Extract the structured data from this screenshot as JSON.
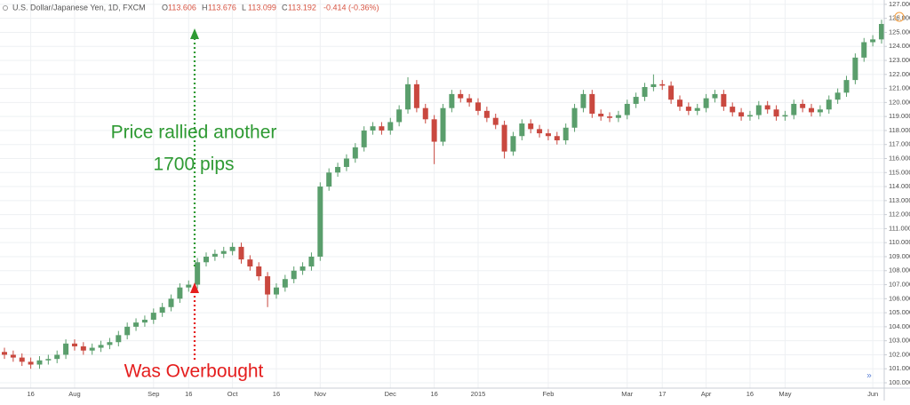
{
  "chart_data": {
    "type": "candlestick",
    "header": {
      "symbol": "U.S. Dollar/Japanese Yen, 1D, FXCM",
      "labels": [
        "O",
        "H",
        "L",
        "C"
      ],
      "open": 113.606,
      "high": 113.676,
      "low": 113.099,
      "close": 113.192,
      "change": "-0.414 (-0.36%)"
    },
    "up_color": "#5a9e6c",
    "down_color": "#c9483f",
    "grid": true,
    "ylim": [
      99.62,
      127.31
    ],
    "yticks": [
      {
        "value": 100,
        "label": "100.000"
      },
      {
        "value": 101,
        "label": "101.000"
      },
      {
        "value": 102,
        "label": "102.000"
      },
      {
        "value": 103,
        "label": "103.000"
      },
      {
        "value": 104,
        "label": "104.000"
      },
      {
        "value": 105,
        "label": "105.000"
      },
      {
        "value": 106,
        "label": "106.000"
      },
      {
        "value": 107,
        "label": "107.000"
      },
      {
        "value": 108,
        "label": "108.000"
      },
      {
        "value": 109,
        "label": "109.000"
      },
      {
        "value": 110,
        "label": "110.000"
      },
      {
        "value": 111,
        "label": "111.000"
      },
      {
        "value": 112,
        "label": "112.000"
      },
      {
        "value": 113,
        "label": "113.000"
      },
      {
        "value": 114,
        "label": "114.000"
      },
      {
        "value": 115,
        "label": "115.000"
      },
      {
        "value": 116,
        "label": "116.000"
      },
      {
        "value": 117,
        "label": "117.000"
      },
      {
        "value": 118,
        "label": "118.000"
      },
      {
        "value": 119,
        "label": "119.000"
      },
      {
        "value": 120,
        "label": "120.000"
      },
      {
        "value": 121,
        "label": "121.000"
      },
      {
        "value": 122,
        "label": "122.000"
      },
      {
        "value": 123,
        "label": "123.000"
      },
      {
        "value": 124,
        "label": "124.000"
      },
      {
        "value": 125,
        "label": "125.000"
      },
      {
        "value": 126,
        "label": "126.000"
      },
      {
        "value": 127,
        "label": "127.000"
      }
    ],
    "categories": [
      null,
      null,
      null,
      "16",
      null,
      null,
      null,
      null,
      "Aug",
      null,
      null,
      null,
      null,
      null,
      null,
      null,
      null,
      "Sep",
      null,
      null,
      null,
      "16",
      null,
      null,
      null,
      null,
      "Oct",
      null,
      null,
      null,
      null,
      "16",
      null,
      null,
      null,
      null,
      "Nov",
      null,
      null,
      null,
      null,
      null,
      null,
      null,
      "Dec",
      null,
      null,
      null,
      null,
      "16",
      null,
      null,
      null,
      null,
      "2015",
      null,
      null,
      null,
      null,
      null,
      null,
      null,
      "Feb",
      null,
      null,
      null,
      null,
      null,
      null,
      null,
      null,
      "Mar",
      null,
      null,
      null,
      "17",
      null,
      null,
      null,
      null,
      "Apr",
      null,
      null,
      null,
      null,
      "16",
      null,
      null,
      null,
      "May",
      null,
      null,
      null,
      null,
      null,
      null,
      null,
      null,
      null,
      "Jun",
      null
    ],
    "open": [
      102.2,
      102.0,
      101.8,
      101.5,
      101.3,
      101.6,
      101.7,
      102.0,
      102.8,
      102.6,
      102.3,
      102.5,
      102.7,
      102.9,
      103.4,
      104.0,
      104.3,
      104.5,
      105.0,
      105.4,
      106.0,
      106.8,
      107.0,
      108.6,
      109.0,
      109.2,
      109.4,
      109.7,
      108.8,
      108.3,
      107.6,
      106.3,
      106.8,
      107.4,
      108.0,
      108.3,
      109.0,
      114.0,
      115.0,
      115.4,
      116.0,
      116.8,
      118.0,
      118.3,
      118.0,
      118.6,
      119.5,
      121.3,
      119.6,
      118.8,
      117.2,
      119.6,
      120.6,
      120.3,
      120.0,
      119.4,
      118.9,
      118.4,
      116.5,
      117.6,
      118.5,
      118.1,
      117.8,
      117.6,
      117.3,
      118.2,
      119.6,
      120.6,
      119.2,
      119.0,
      118.9,
      119.1,
      119.9,
      120.4,
      121.1,
      121.3,
      121.2,
      120.2,
      119.7,
      119.4,
      119.6,
      120.3,
      120.6,
      119.7,
      119.3,
      119.0,
      119.1,
      119.8,
      119.5,
      119.0,
      119.1,
      119.9,
      119.6,
      119.3,
      119.5,
      120.2,
      120.7,
      121.6,
      123.2,
      124.3,
      124.5
    ],
    "high": [
      102.5,
      102.3,
      102.1,
      101.8,
      101.9,
      102.0,
      102.3,
      103.1,
      103.1,
      102.9,
      102.8,
      103.0,
      103.2,
      103.7,
      104.3,
      104.6,
      104.8,
      105.3,
      105.7,
      106.3,
      107.1,
      107.3,
      108.9,
      109.3,
      109.5,
      109.7,
      110.0,
      110.0,
      109.1,
      108.6,
      107.9,
      107.1,
      107.7,
      108.3,
      108.6,
      109.3,
      114.3,
      115.3,
      115.7,
      116.3,
      117.1,
      118.3,
      118.6,
      118.6,
      118.9,
      119.8,
      121.8,
      121.6,
      119.9,
      119.1,
      119.9,
      120.9,
      120.9,
      120.6,
      120.3,
      119.7,
      119.2,
      118.7,
      117.9,
      118.8,
      118.8,
      118.4,
      118.1,
      117.9,
      118.5,
      119.9,
      120.9,
      120.9,
      119.5,
      119.3,
      119.4,
      120.2,
      120.7,
      121.4,
      122.0,
      121.6,
      121.5,
      120.5,
      120.0,
      119.9,
      120.6,
      120.9,
      120.9,
      120.0,
      119.6,
      119.4,
      120.1,
      120.1,
      119.8,
      119.4,
      120.2,
      120.2,
      119.9,
      119.8,
      120.5,
      121.0,
      121.9,
      123.5,
      124.6,
      124.8,
      125.9
    ],
    "low": [
      101.7,
      101.5,
      101.2,
      101.0,
      101.0,
      101.3,
      101.4,
      101.7,
      102.3,
      102.0,
      102.0,
      102.2,
      102.4,
      102.6,
      103.1,
      103.7,
      104.0,
      104.2,
      104.7,
      105.1,
      105.7,
      106.5,
      106.7,
      108.3,
      108.7,
      108.9,
      109.1,
      108.5,
      108.0,
      107.3,
      105.4,
      106.0,
      106.5,
      107.1,
      107.7,
      108.0,
      108.7,
      113.7,
      114.7,
      115.1,
      115.7,
      116.5,
      117.7,
      117.7,
      117.7,
      118.3,
      119.2,
      119.3,
      118.5,
      115.6,
      116.9,
      119.3,
      120.0,
      119.7,
      119.1,
      118.6,
      118.1,
      116.0,
      116.2,
      117.3,
      117.8,
      117.5,
      117.3,
      117.0,
      117.0,
      117.9,
      119.3,
      118.9,
      118.7,
      118.6,
      118.6,
      118.8,
      119.6,
      120.1,
      120.8,
      120.9,
      119.9,
      119.4,
      119.1,
      119.1,
      119.3,
      120.0,
      119.4,
      119.0,
      118.7,
      118.7,
      118.8,
      119.2,
      118.7,
      118.7,
      118.8,
      119.3,
      119.0,
      119.0,
      119.2,
      119.9,
      120.4,
      121.3,
      122.9,
      124.0,
      124.2
    ],
    "close": [
      102.0,
      101.8,
      101.5,
      101.3,
      101.6,
      101.7,
      102.0,
      102.8,
      102.6,
      102.3,
      102.5,
      102.7,
      102.9,
      103.4,
      104.0,
      104.3,
      104.5,
      105.0,
      105.4,
      106.0,
      106.8,
      107.0,
      108.6,
      109.0,
      109.2,
      109.4,
      109.7,
      108.8,
      108.3,
      107.6,
      106.3,
      106.8,
      107.4,
      108.0,
      108.3,
      109.0,
      114.0,
      115.0,
      115.4,
      116.0,
      116.8,
      118.0,
      118.3,
      118.0,
      118.6,
      119.5,
      121.3,
      119.6,
      118.8,
      117.2,
      119.6,
      120.6,
      120.3,
      120.0,
      119.4,
      118.9,
      118.4,
      116.5,
      117.6,
      118.5,
      118.1,
      117.8,
      117.6,
      117.3,
      118.2,
      119.6,
      120.6,
      119.2,
      119.0,
      118.9,
      119.1,
      119.9,
      120.4,
      121.1,
      121.3,
      121.2,
      120.2,
      119.7,
      119.4,
      119.6,
      120.3,
      120.6,
      119.7,
      119.3,
      119.0,
      119.1,
      119.8,
      119.5,
      119.0,
      119.1,
      119.9,
      119.6,
      119.3,
      119.5,
      120.2,
      120.7,
      121.6,
      123.2,
      124.3,
      124.5,
      125.6
    ],
    "annotations": [
      {
        "text": [
          "Price rallied another",
          "1700 pips"
        ],
        "color": "#2e9a33"
      },
      {
        "text": [
          "Was Overbought"
        ],
        "color": "#e51d1d"
      }
    ]
  }
}
